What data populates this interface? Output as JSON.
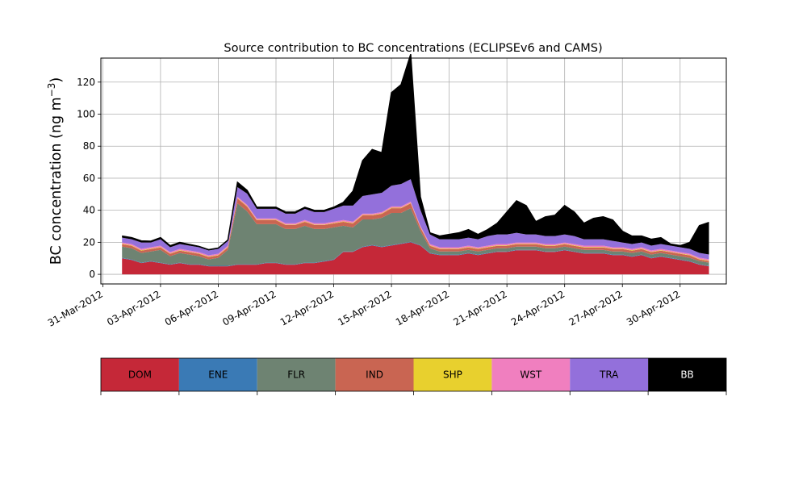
{
  "chart_data": {
    "type": "area",
    "title": "Source contribution to BC concentrations (ECLIPSEv6 and CAMS)",
    "ylabel_main": "BC concentration (ng m",
    "ylabel_sup": "−3",
    "ylabel_tail": ")",
    "xlabel": "",
    "ylim": [
      -6,
      135
    ],
    "yticks": [
      0,
      20,
      40,
      60,
      80,
      100,
      120
    ],
    "xticks": [
      "31-Mar-2012",
      "03-Apr-2012",
      "06-Apr-2012",
      "09-Apr-2012",
      "12-Apr-2012",
      "15-Apr-2012",
      "18-Apr-2012",
      "21-Apr-2012",
      "24-Apr-2012",
      "27-Apr-2012",
      "30-Apr-2012"
    ],
    "grid": true,
    "x_start": "2012-04-01",
    "days": [
      1,
      1.5,
      2,
      2.5,
      3,
      3.5,
      4,
      4.5,
      5,
      5.5,
      6,
      6.5,
      7,
      7.5,
      8,
      8.5,
      9,
      9.5,
      10,
      10.5,
      11,
      11.5,
      12,
      12.5,
      13,
      13.5,
      14,
      14.5,
      15,
      15.5,
      16,
      16.5,
      17,
      17.5,
      18,
      18.5,
      19,
      19.5,
      20,
      20.5,
      21,
      21.5,
      22,
      22.5,
      23,
      23.5,
      24,
      24.5,
      25,
      25.5,
      26,
      26.5,
      27,
      27.5,
      28,
      28.5,
      29,
      29.5,
      30,
      30.5,
      31,
      31.5
    ],
    "series": [
      {
        "name": "DOM",
        "color": "#c52838",
        "values": [
          10,
          9,
          7,
          8,
          7,
          6,
          7,
          6,
          6,
          5,
          5,
          5,
          6,
          6,
          6,
          7,
          7,
          6,
          6,
          7,
          7,
          8,
          9,
          14,
          14,
          17,
          18,
          17,
          18,
          19,
          20,
          18,
          13,
          12,
          12,
          12,
          13,
          12,
          13,
          14,
          14,
          15,
          15,
          15,
          14,
          14,
          15,
          14,
          13,
          13,
          13,
          12,
          12,
          11,
          12,
          10,
          11,
          10,
          9,
          8,
          6,
          5
        ]
      },
      {
        "name": "ENE",
        "color": "#3a7ab5",
        "values": [
          0.3,
          0.3,
          0.3,
          0.3,
          0.3,
          0.3,
          0.3,
          0.3,
          0.3,
          0.3,
          0.3,
          0.3,
          0.3,
          0.3,
          0.3,
          0.3,
          0.3,
          0.3,
          0.3,
          0.3,
          0.3,
          0.3,
          0.3,
          0.3,
          0.3,
          0.3,
          0.3,
          0.3,
          0.3,
          0.3,
          0.3,
          0.3,
          0.3,
          0.3,
          0.3,
          0.3,
          0.3,
          0.3,
          0.3,
          0.3,
          0.3,
          0.3,
          0.3,
          0.3,
          0.3,
          0.3,
          0.3,
          0.3,
          0.3,
          0.3,
          0.3,
          0.3,
          0.3,
          0.3,
          0.3,
          0.3,
          0.3,
          0.3,
          0.3,
          0.3,
          0.3,
          0.3
        ]
      },
      {
        "name": "FLR",
        "color": "#6e8372",
        "values": [
          7,
          7,
          6,
          6,
          8,
          5,
          6,
          6,
          5,
          4,
          5,
          10,
          38,
          33,
          25,
          24,
          24,
          22,
          22,
          23,
          21,
          20,
          20,
          16,
          15,
          17,
          16,
          18,
          20,
          19,
          21,
          9,
          3,
          2,
          2,
          2,
          2,
          2,
          2,
          2,
          2,
          2,
          2,
          2,
          2,
          2,
          2,
          2,
          2,
          2,
          2,
          2,
          2,
          2,
          2,
          2,
          2,
          2,
          2,
          2,
          2,
          2
        ]
      },
      {
        "name": "IND",
        "color": "#c96552",
        "values": [
          1.5,
          1.5,
          1.5,
          1.5,
          1.5,
          1.5,
          1.5,
          1.5,
          1.5,
          1.5,
          1.5,
          1.5,
          3,
          3,
          2.5,
          2.5,
          2.5,
          2.5,
          2.5,
          2.5,
          2.5,
          2.5,
          2.5,
          2.5,
          2.5,
          2.5,
          2.5,
          2.5,
          3,
          3,
          3,
          2,
          1.5,
          1.5,
          1.5,
          1.5,
          1.5,
          1.5,
          1.5,
          1.5,
          1.5,
          1.5,
          1.5,
          1.5,
          1.5,
          1.5,
          1.5,
          1.5,
          1.5,
          1.5,
          1.5,
          1.5,
          1.5,
          1.5,
          1.5,
          1.5,
          1.5,
          1.5,
          1.5,
          1.5,
          1,
          1
        ]
      },
      {
        "name": "SHP",
        "color": "#e8d02e",
        "values": [
          0.3,
          0.3,
          0.3,
          0.3,
          0.3,
          0.3,
          0.3,
          0.3,
          0.3,
          0.3,
          0.3,
          0.3,
          0.3,
          0.3,
          0.3,
          0.3,
          0.3,
          0.3,
          0.3,
          0.3,
          0.3,
          0.3,
          0.3,
          0.3,
          0.3,
          0.3,
          0.3,
          0.3,
          0.3,
          0.3,
          0.3,
          0.3,
          0.3,
          0.3,
          0.3,
          0.3,
          0.3,
          0.3,
          0.3,
          0.3,
          0.3,
          0.3,
          0.3,
          0.3,
          0.3,
          0.3,
          0.3,
          0.3,
          0.3,
          0.3,
          0.3,
          0.3,
          0.3,
          0.3,
          0.3,
          0.3,
          0.3,
          0.3,
          0.3,
          0.3,
          0.3,
          0.3
        ]
      },
      {
        "name": "WST",
        "color": "#f07fbf",
        "values": [
          0.8,
          0.8,
          0.8,
          0.8,
          0.8,
          0.8,
          0.8,
          0.8,
          0.8,
          0.8,
          0.8,
          0.8,
          0.8,
          0.8,
          0.8,
          0.8,
          0.8,
          0.8,
          0.8,
          0.8,
          0.8,
          0.8,
          0.8,
          0.8,
          0.8,
          0.8,
          0.8,
          0.8,
          0.8,
          0.8,
          0.8,
          0.8,
          0.8,
          0.8,
          0.8,
          0.8,
          0.8,
          0.8,
          0.8,
          0.8,
          0.8,
          0.8,
          0.8,
          0.8,
          0.8,
          0.8,
          0.8,
          0.8,
          0.8,
          0.8,
          0.8,
          0.8,
          0.8,
          0.8,
          0.8,
          0.8,
          0.8,
          0.8,
          0.8,
          0.8,
          0.8,
          0.8
        ]
      },
      {
        "name": "TRA",
        "color": "#9370db",
        "values": [
          3,
          3,
          4,
          3,
          4,
          3,
          3,
          3,
          3,
          3,
          3,
          3,
          6,
          7,
          6,
          6,
          6,
          6,
          6,
          7,
          7,
          7,
          8,
          9,
          10,
          11,
          12,
          12,
          13,
          14,
          14,
          10,
          6,
          5,
          5,
          5,
          5,
          5,
          6,
          6,
          6,
          6,
          5,
          5,
          5,
          5,
          5,
          5,
          4,
          4,
          4,
          4,
          3,
          3,
          3,
          3,
          3,
          3,
          3,
          3,
          3,
          3
        ]
      },
      {
        "name": "BB",
        "color": "#000000",
        "values": [
          1,
          1,
          1,
          0.8,
          1,
          1,
          1,
          0.8,
          0.5,
          0.5,
          0.5,
          0.5,
          3,
          2,
          1,
          1,
          1,
          1,
          1,
          1,
          1,
          1,
          1,
          2,
          9,
          22,
          28,
          25,
          58,
          62,
          78,
          8,
          1,
          2,
          3,
          4,
          5,
          3,
          4,
          7,
          14,
          20,
          18,
          8,
          12,
          13,
          18,
          15,
          10,
          13,
          14,
          13,
          7,
          5,
          4,
          4,
          4,
          1,
          1,
          4,
          17,
          20
        ]
      }
    ],
    "legend": {
      "placement": "bottom",
      "entries": [
        {
          "label": "DOM",
          "color": "#c52838",
          "text_color": "#000000"
        },
        {
          "label": "ENE",
          "color": "#3a7ab5",
          "text_color": "#000000"
        },
        {
          "label": "FLR",
          "color": "#6e8372",
          "text_color": "#000000"
        },
        {
          "label": "IND",
          "color": "#c96552",
          "text_color": "#000000"
        },
        {
          "label": "SHP",
          "color": "#e8d02e",
          "text_color": "#000000"
        },
        {
          "label": "WST",
          "color": "#f07fbf",
          "text_color": "#000000"
        },
        {
          "label": "TRA",
          "color": "#9370db",
          "text_color": "#000000"
        },
        {
          "label": "BB",
          "color": "#000000",
          "text_color": "#ffffff"
        }
      ]
    }
  }
}
